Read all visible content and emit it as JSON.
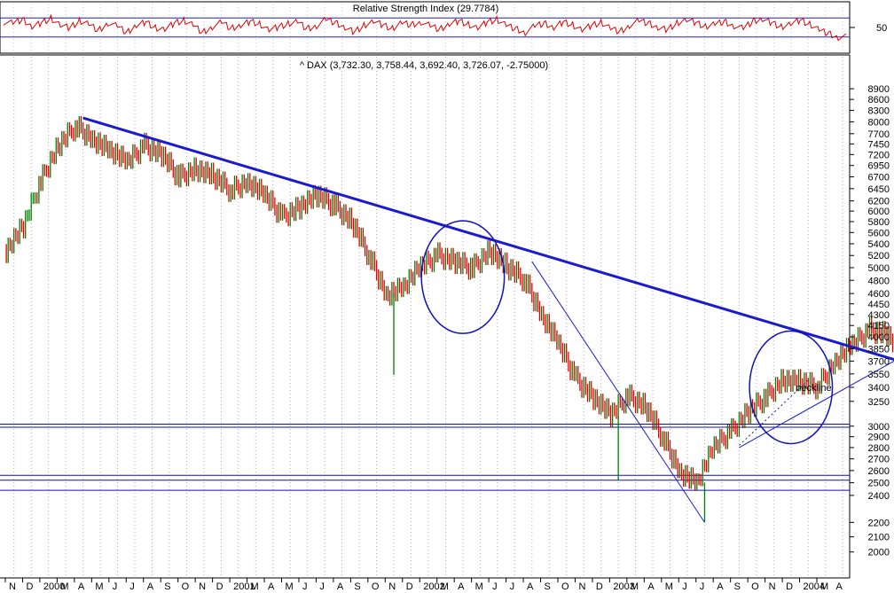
{
  "chart_data": [
    {
      "type": "line",
      "panel": "rsi",
      "title": "Relative Strength Index (29.7784)",
      "ylabel": "",
      "ylim": [
        0,
        100
      ],
      "yticks": [
        50
      ],
      "reference_lines": [
        70,
        30
      ],
      "series": [
        {
          "color": "#e00000",
          "values": [
            62,
            58,
            66,
            52,
            60,
            70,
            55,
            48,
            63,
            57,
            44,
            60,
            52,
            38,
            55,
            62,
            50,
            46,
            58,
            64,
            55,
            40,
            52,
            60,
            47,
            55,
            63,
            58,
            45,
            50,
            57,
            62,
            48,
            54,
            66,
            59,
            50,
            41,
            55,
            63,
            54,
            47,
            60,
            56,
            62,
            52,
            45,
            58,
            64,
            57,
            49,
            60,
            66,
            55,
            48,
            40,
            52,
            58,
            50,
            62,
            56,
            45,
            53,
            60,
            48,
            42,
            55,
            63,
            58,
            50,
            46,
            60,
            66,
            59,
            51,
            57,
            63,
            54,
            47,
            62,
            68,
            60,
            52,
            58,
            64,
            56,
            45,
            38,
            30
          ]
        }
      ]
    },
    {
      "type": "line",
      "panel": "price",
      "title": "^ DAX (3,732.30, 3,758.44, 3,692.40, 3,726.07, -2.75000)",
      "xlabel": "",
      "ylabel": "",
      "log_scale": true,
      "ylim": [
        1850,
        9700
      ],
      "yticks": [
        2000,
        2100,
        2200,
        2400,
        2500,
        2600,
        2700,
        2800,
        2900,
        3000,
        3250,
        3400,
        3550,
        3700,
        3850,
        4000,
        4150,
        4300,
        4450,
        4600,
        4800,
        5000,
        5200,
        5400,
        5600,
        5800,
        6000,
        6200,
        6450,
        6700,
        6950,
        7200,
        7450,
        7700,
        8000,
        8300,
        8600,
        8900
      ],
      "x_months": [
        "N",
        "D",
        "2000",
        "M",
        "A",
        "M",
        "J",
        "J",
        "A",
        "S",
        "O",
        "N",
        "D",
        "2001",
        "M",
        "A",
        "M",
        "J",
        "J",
        "A",
        "S",
        "O",
        "N",
        "D",
        "2002",
        "M",
        "A",
        "M",
        "J",
        "J",
        "A",
        "S",
        "O",
        "N",
        "D",
        "2003",
        "M",
        "A",
        "M",
        "J",
        "J",
        "A",
        "S",
        "O",
        "N",
        "D",
        "2004",
        "M"
      ],
      "x_tail_label": "A",
      "series": [
        {
          "name": "",
          "color_up": "#008000",
          "color_down": "#e00000",
          "x": [
            "1999-11",
            "1999-12",
            "2000-01",
            "2000-02",
            "2000-03",
            "2000-04",
            "2000-05",
            "2000-06",
            "2000-07",
            "2000-08",
            "2000-09",
            "2000-10",
            "2000-11",
            "2000-12",
            "2001-01",
            "2001-02",
            "2001-03",
            "2001-04",
            "2001-05",
            "2001-06",
            "2001-07",
            "2001-08",
            "2001-09",
            "2001-10",
            "2001-11",
            "2001-12",
            "2002-01",
            "2002-02",
            "2002-03",
            "2002-04",
            "2002-05",
            "2002-06",
            "2002-07",
            "2002-08",
            "2002-09",
            "2002-10",
            "2002-11",
            "2002-12",
            "2003-01",
            "2003-02",
            "2003-03",
            "2003-04",
            "2003-05",
            "2003-06",
            "2003-07",
            "2003-08",
            "2003-09",
            "2003-10",
            "2003-11",
            "2003-12",
            "2004-01",
            "2004-02",
            "2004-03"
          ],
          "values": [
            5300,
            5700,
            6600,
            7400,
            7900,
            7600,
            7300,
            7000,
            7400,
            7200,
            6700,
            6900,
            6700,
            6400,
            6600,
            6300,
            5900,
            6100,
            6300,
            6100,
            5800,
            5200,
            4600,
            4700,
            5000,
            5200,
            5100,
            5000,
            5300,
            5000,
            4800,
            4300,
            3900,
            3500,
            3300,
            3100,
            3300,
            3200,
            2900,
            2600,
            2500,
            2800,
            2950,
            3150,
            3300,
            3500,
            3450,
            3400,
            3700,
            3900,
            4100,
            4050,
            3750
          ],
          "low_spikes": [
            {
              "x": "2001-09",
              "value": 3540
            },
            {
              "x": "2002-10",
              "value": 2520
            },
            {
              "x": "2003-03",
              "value": 2200
            }
          ]
        }
      ],
      "trendlines": [
        {
          "from": {
            "x": "2000-03",
            "value": 8100
          },
          "to": {
            "x": "2004-03",
            "value": 3620
          },
          "style": "thick"
        },
        {
          "from": {
            "x": "2002-05",
            "value": 5100
          },
          "to": {
            "x": "2003-03",
            "value": 2200
          },
          "style": "thin"
        },
        {
          "from": {
            "x": "2003-05",
            "value": 2800
          },
          "to": {
            "x": "2004-03",
            "value": 3820
          },
          "style": "thin"
        },
        {
          "from": {
            "x": "2003-05",
            "value": 2820
          },
          "to": {
            "x": "2003-09",
            "value": 3480
          },
          "style": "dotted"
        }
      ],
      "horizontal_lines": [
        3020,
        2990,
        2560,
        2520,
        2440
      ],
      "circles": [
        {
          "x": "2002-01",
          "value": 4850,
          "rx_months": 2.4,
          "ry_value_frac": 0.15
        },
        {
          "x": "2003-08",
          "value": 3400,
          "rx_months": 2.4,
          "ry_value_frac": 0.15
        }
      ],
      "annotations": [
        {
          "text": "neckline",
          "x": "2003-09",
          "value": 3360,
          "color": "#d000d0"
        }
      ]
    }
  ]
}
